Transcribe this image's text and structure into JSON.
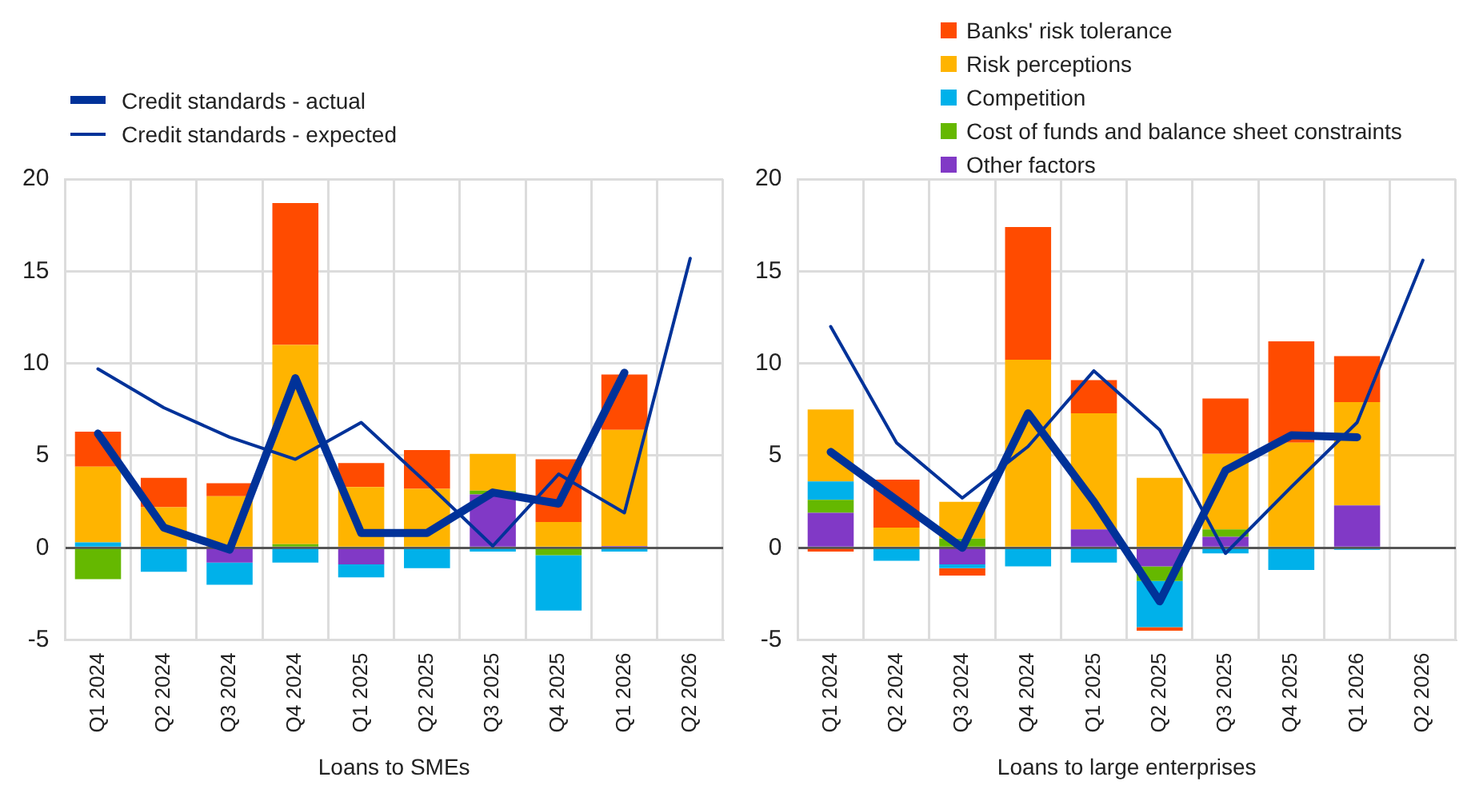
{
  "chart_data": [
    {
      "type": "bar",
      "stacked": true,
      "xlabel": "Loans to SMEs",
      "categories": [
        "Q1 2024",
        "Q2 2024",
        "Q3 2024",
        "Q4 2024",
        "Q1 2025",
        "Q2 2025",
        "Q3 2025",
        "Q4 2025",
        "Q1 2026",
        "Q2 2026"
      ],
      "ylim": [
        -5,
        20
      ],
      "yticks": [
        -5,
        0,
        5,
        10,
        15,
        20
      ],
      "grid": true,
      "legend": "top left",
      "series": [
        {
          "color": "#8139c6",
          "values": [
            0,
            0,
            -0.8,
            0,
            -0.9,
            0,
            2.9,
            0,
            0.1,
            null
          ]
        },
        {
          "color": "#65b800",
          "values": [
            -1.7,
            0,
            0,
            0.2,
            0,
            0,
            0.2,
            -0.4,
            0,
            null
          ]
        },
        {
          "color": "#00b1ea",
          "values": [
            0.3,
            -1.3,
            -1.2,
            -0.8,
            -0.7,
            -1.1,
            -0.2,
            -3.0,
            -0.2,
            null
          ]
        },
        {
          "color": "#ffb400",
          "values": [
            4.1,
            2.2,
            2.8,
            10.8,
            3.3,
            3.2,
            2.0,
            1.4,
            6.3,
            null
          ]
        },
        {
          "color": "#ff4b00",
          "values": [
            1.9,
            1.6,
            0.7,
            7.7,
            1.3,
            2.1,
            0,
            3.4,
            3.0,
            null
          ]
        },
        {
          "type": "line",
          "name": "Credit standards - actual",
          "color": "#003299",
          "values": [
            6.2,
            1.1,
            -0.1,
            9.2,
            0.8,
            0.8,
            3.0,
            2.4,
            9.5,
            null
          ]
        },
        {
          "type": "line",
          "name": "Credit standards - expected",
          "color": "#003299",
          "values": [
            9.7,
            7.6,
            6.0,
            4.8,
            6.8,
            3.5,
            0.1,
            4.0,
            1.9,
            15.7
          ]
        }
      ]
    },
    {
      "type": "bar",
      "stacked": true,
      "xlabel": "Loans to large enterprises",
      "categories": [
        "Q1 2024",
        "Q2 2024",
        "Q3 2024",
        "Q4 2024",
        "Q1 2025",
        "Q2 2025",
        "Q3 2025",
        "Q4 2025",
        "Q1 2026",
        "Q2 2026"
      ],
      "ylim": [
        -5,
        20
      ],
      "yticks": [
        -5,
        0,
        5,
        10,
        15,
        20
      ],
      "grid": true,
      "legend": "top right",
      "series": [
        {
          "name": "Other factors",
          "color": "#8139c6",
          "values": [
            1.9,
            0,
            -0.9,
            0,
            1.0,
            -1.0,
            0.6,
            0,
            2.3,
            null
          ]
        },
        {
          "name": "Cost of funds and balance sheet constraints",
          "color": "#65b800",
          "values": [
            0.7,
            0,
            0.5,
            0,
            0,
            -0.8,
            0.4,
            0,
            0,
            null
          ]
        },
        {
          "name": "Competition",
          "color": "#00b1ea",
          "values": [
            1.0,
            -0.7,
            -0.2,
            -1.0,
            -0.8,
            -2.5,
            -0.3,
            -1.2,
            -0.1,
            null
          ]
        },
        {
          "name": "Risk perceptions",
          "color": "#ffb400",
          "values": [
            3.9,
            1.1,
            2.0,
            10.2,
            6.3,
            3.8,
            4.1,
            5.7,
            5.6,
            null
          ]
        },
        {
          "name": "Banks' risk tolerance",
          "color": "#ff4b00",
          "values": [
            -0.2,
            2.6,
            -0.4,
            7.2,
            1.8,
            -0.2,
            3.0,
            5.5,
            2.5,
            null
          ]
        },
        {
          "type": "line",
          "color": "#003299",
          "values": [
            5.2,
            2.6,
            0,
            7.3,
            2.5,
            -2.9,
            4.2,
            6.1,
            6.0,
            null
          ]
        },
        {
          "type": "line",
          "color": "#003299",
          "values": [
            12.0,
            5.7,
            2.7,
            5.5,
            9.6,
            6.4,
            -0.3,
            3.3,
            6.8,
            15.6
          ]
        }
      ]
    }
  ]
}
